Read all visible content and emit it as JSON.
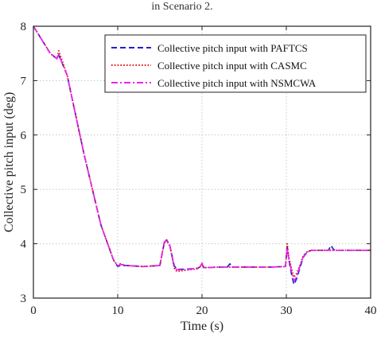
{
  "caption": "in Scenario 2.",
  "chart_data": {
    "type": "line",
    "title": "",
    "xlabel": "Time (s)",
    "ylabel": "Collective pitch input (deg)",
    "xlim": [
      0,
      40
    ],
    "ylim": [
      3,
      8
    ],
    "xticks": [
      0,
      10,
      20,
      30,
      40
    ],
    "yticks": [
      3,
      4,
      5,
      6,
      7,
      8
    ],
    "grid": true,
    "legend_position": "top-right",
    "series": [
      {
        "name": "Collective pitch input with PAFTCS",
        "color": "#1f1fd6",
        "style": "dashed",
        "x": [
          0,
          1,
          2,
          2.8,
          3,
          3.2,
          4,
          6,
          8,
          9.5,
          10,
          10.3,
          11,
          13,
          15,
          15.5,
          15.8,
          16.2,
          16.7,
          17,
          18,
          19.5,
          19.8,
          20,
          20.2,
          22,
          23,
          23.3,
          23.6,
          25,
          28,
          29.9,
          30.1,
          30.3,
          30.6,
          30.9,
          31.2,
          31.6,
          32,
          32.5,
          33,
          34,
          35,
          35.3,
          35.6,
          36,
          38,
          40
        ],
        "y": [
          8.0,
          7.75,
          7.5,
          7.4,
          7.47,
          7.4,
          7.1,
          5.65,
          4.35,
          3.7,
          3.58,
          3.6,
          3.6,
          3.58,
          3.6,
          4.0,
          4.07,
          3.95,
          3.6,
          3.53,
          3.53,
          3.55,
          3.58,
          3.62,
          3.56,
          3.57,
          3.57,
          3.63,
          3.57,
          3.57,
          3.57,
          3.58,
          3.95,
          3.7,
          3.45,
          3.25,
          3.35,
          3.55,
          3.75,
          3.85,
          3.88,
          3.88,
          3.88,
          3.97,
          3.89,
          3.88,
          3.88,
          3.88
        ]
      },
      {
        "name": "Collective pitch input with CASMC",
        "color": "#ee1111",
        "style": "dotted",
        "x": [
          0,
          1,
          2,
          2.8,
          3,
          3.3,
          4,
          6,
          8,
          9.5,
          10,
          10.3,
          11,
          13,
          15,
          15.5,
          15.8,
          16.2,
          16.7,
          17,
          18,
          19.5,
          19.8,
          20,
          20.2,
          22,
          25,
          28,
          29.9,
          30.1,
          30.3,
          30.6,
          30.9,
          31.2,
          31.6,
          32,
          32.5,
          33,
          34,
          36,
          38,
          40
        ],
        "y": [
          8.0,
          7.75,
          7.5,
          7.4,
          7.55,
          7.42,
          7.1,
          5.65,
          4.35,
          3.7,
          3.6,
          3.63,
          3.6,
          3.58,
          3.6,
          4.0,
          4.07,
          3.95,
          3.55,
          3.49,
          3.51,
          3.54,
          3.58,
          3.65,
          3.56,
          3.57,
          3.57,
          3.57,
          3.58,
          4.0,
          3.75,
          3.55,
          3.38,
          3.45,
          3.6,
          3.78,
          3.86,
          3.88,
          3.88,
          3.88,
          3.88,
          3.88
        ]
      },
      {
        "name": "Collective pitch input with NSMCWA",
        "color": "#ee22ee",
        "style": "dashdot",
        "x": [
          0,
          1,
          2,
          2.8,
          3,
          3.2,
          4,
          6,
          8,
          9.5,
          10,
          10.3,
          11,
          13,
          15,
          15.5,
          15.8,
          16.2,
          16.7,
          17,
          18,
          19.5,
          19.8,
          20,
          20.2,
          22,
          25,
          28,
          29.9,
          30.1,
          30.3,
          30.6,
          30.9,
          31.2,
          31.6,
          32,
          32.5,
          33,
          34,
          36,
          38,
          40
        ],
        "y": [
          8.0,
          7.75,
          7.5,
          7.4,
          7.5,
          7.4,
          7.1,
          5.65,
          4.35,
          3.7,
          3.59,
          3.62,
          3.6,
          3.58,
          3.6,
          4.02,
          4.08,
          3.96,
          3.58,
          3.52,
          3.52,
          3.55,
          3.58,
          3.64,
          3.56,
          3.57,
          3.57,
          3.57,
          3.58,
          3.92,
          3.72,
          3.5,
          3.32,
          3.38,
          3.58,
          3.76,
          3.85,
          3.88,
          3.88,
          3.88,
          3.88,
          3.88
        ]
      }
    ]
  }
}
